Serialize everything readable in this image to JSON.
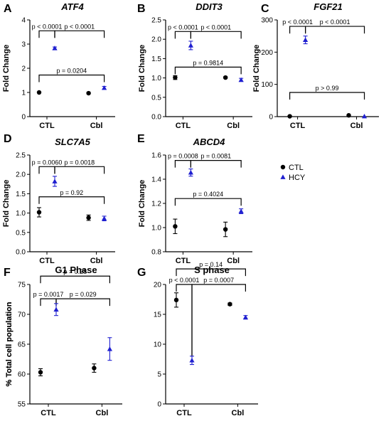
{
  "legend": [
    {
      "label": "CTL",
      "color": "#000000",
      "marker": "circle"
    },
    {
      "label": "HCY",
      "color": "#1f1fd0",
      "marker": "triangle"
    }
  ],
  "chart_data": [
    {
      "letter": "A",
      "title": "ATF4",
      "italic": true,
      "type": "scatter",
      "categories": [
        "CTL",
        "Cbl"
      ],
      "ylabel": "Fold Change",
      "ylim": [
        0,
        4
      ],
      "yticks": [
        0,
        1,
        2,
        3,
        4
      ],
      "series": [
        {
          "name": "CTL",
          "values": [
            1.0,
            0.97
          ],
          "err": [
            0.02,
            0.03
          ]
        },
        {
          "name": "HCY",
          "values": [
            2.83,
            1.19
          ],
          "err": [
            0.05,
            0.06
          ]
        }
      ],
      "comparisons": [
        {
          "a": [
            0,
            0
          ],
          "b": [
            0,
            1
          ],
          "label": "p < 0.0001",
          "y": 3.55,
          "side": "left"
        },
        {
          "a": [
            0,
            1
          ],
          "b": [
            1,
            1
          ],
          "label": "p < 0.0001",
          "y": 3.55,
          "side": "right"
        },
        {
          "a": [
            0,
            0
          ],
          "b": [
            1,
            1
          ],
          "label": "p = 0.0204",
          "y": 1.72
        }
      ]
    },
    {
      "letter": "B",
      "title": "DDIT3",
      "italic": true,
      "type": "scatter",
      "categories": [
        "CTL",
        "Cbl"
      ],
      "ylabel": "Fold Change",
      "ylim": [
        0,
        2.5
      ],
      "yticks": [
        0,
        0.5,
        1,
        1.5,
        2,
        2.5
      ],
      "series": [
        {
          "name": "CTL",
          "values": [
            1.01,
            1.01
          ],
          "err": [
            0.05,
            0.02
          ]
        },
        {
          "name": "HCY",
          "values": [
            1.84,
            0.95
          ],
          "err": [
            0.11,
            0.04
          ]
        }
      ],
      "comparisons": [
        {
          "a": [
            0,
            0
          ],
          "b": [
            0,
            1
          ],
          "label": "p < 0.0001",
          "y": 2.2,
          "side": "left"
        },
        {
          "a": [
            0,
            1
          ],
          "b": [
            1,
            1
          ],
          "label": "p < 0.0001",
          "y": 2.2,
          "side": "right"
        },
        {
          "a": [
            0,
            0
          ],
          "b": [
            1,
            1
          ],
          "label": "p = 0.9814",
          "y": 1.28
        }
      ]
    },
    {
      "letter": "C",
      "title": "FGF21",
      "italic": true,
      "type": "scatter",
      "categories": [
        "CTL",
        "Cbl"
      ],
      "ylabel": "Fold Change",
      "ylim": [
        0,
        300
      ],
      "yticks": [
        0,
        100,
        200,
        300
      ],
      "series": [
        {
          "name": "CTL",
          "values": [
            1,
            4
          ],
          "err": [
            0.5,
            0.5
          ]
        },
        {
          "name": "HCY",
          "values": [
            238,
            1
          ],
          "err": [
            12,
            0.5
          ]
        }
      ],
      "comparisons": [
        {
          "a": [
            0,
            0
          ],
          "b": [
            0,
            1
          ],
          "label": "p < 0.0001",
          "y": 280,
          "side": "left"
        },
        {
          "a": [
            0,
            1
          ],
          "b": [
            1,
            1
          ],
          "label": "p < 0.0001",
          "y": 280,
          "side": "right"
        },
        {
          "a": [
            0,
            0
          ],
          "b": [
            1,
            1
          ],
          "label": "p > 0.99",
          "y": 75
        }
      ]
    },
    {
      "letter": "D",
      "title": "SLC7A5",
      "italic": true,
      "type": "scatter",
      "categories": [
        "CTL",
        "Cbl"
      ],
      "ylabel": "Fold Change",
      "ylim": [
        0,
        2.5
      ],
      "yticks": [
        0,
        0.5,
        1,
        1.5,
        2,
        2.5
      ],
      "series": [
        {
          "name": "CTL",
          "values": [
            1.02,
            0.88
          ],
          "err": [
            0.12,
            0.07
          ]
        },
        {
          "name": "HCY",
          "values": [
            1.82,
            0.86
          ],
          "err": [
            0.13,
            0.06
          ]
        }
      ],
      "comparisons": [
        {
          "a": [
            0,
            0
          ],
          "b": [
            0,
            1
          ],
          "label": "p = 0.0060",
          "y": 2.2,
          "side": "left"
        },
        {
          "a": [
            0,
            1
          ],
          "b": [
            1,
            1
          ],
          "label": "p = 0.0018",
          "y": 2.2,
          "side": "right"
        },
        {
          "a": [
            0,
            0
          ],
          "b": [
            1,
            1
          ],
          "label": "p = 0.92",
          "y": 1.42
        }
      ]
    },
    {
      "letter": "E",
      "title": "ABCD4",
      "italic": true,
      "type": "scatter",
      "categories": [
        "CTL",
        "Cbl"
      ],
      "ylabel": "Fold Change",
      "ylim": [
        0.8,
        1.6
      ],
      "yticks": [
        0.8,
        1.0,
        1.2,
        1.4,
        1.6
      ],
      "series": [
        {
          "name": "CTL",
          "values": [
            1.01,
            0.985
          ],
          "err": [
            0.06,
            0.06
          ]
        },
        {
          "name": "HCY",
          "values": [
            1.455,
            1.135
          ],
          "err": [
            0.03,
            0.02
          ]
        }
      ],
      "comparisons": [
        {
          "a": [
            0,
            0
          ],
          "b": [
            0,
            1
          ],
          "label": "p = 0.0008",
          "y": 1.555,
          "side": "left"
        },
        {
          "a": [
            0,
            1
          ],
          "b": [
            1,
            1
          ],
          "label": "p = 0.0081",
          "y": 1.555,
          "side": "right"
        },
        {
          "a": [
            0,
            0
          ],
          "b": [
            1,
            1
          ],
          "label": "p = 0.4024",
          "y": 1.24
        }
      ]
    },
    {
      "letter": "F",
      "title": "G1 Phase",
      "italic": false,
      "type": "scatter",
      "categories": [
        "CTL",
        "Cbl"
      ],
      "ylabel": "% Total cell population",
      "ylim": [
        55,
        75
      ],
      "yticks": [
        55,
        60,
        65,
        70,
        75
      ],
      "series": [
        {
          "name": "CTL",
          "values": [
            60.3,
            61.0
          ],
          "err": [
            0.6,
            0.7
          ]
        },
        {
          "name": "HCY",
          "values": [
            70.8,
            64.2
          ],
          "err": [
            1.0,
            1.9
          ]
        }
      ],
      "comparisons": [
        {
          "a": [
            0,
            0
          ],
          "b": [
            0,
            1
          ],
          "label": "p = 0.0017",
          "y": 72.6,
          "side": "left"
        },
        {
          "a": [
            0,
            1
          ],
          "b": [
            1,
            1
          ],
          "label": "p = 0.029",
          "y": 72.6,
          "side": "right"
        },
        {
          "a": [
            0,
            0
          ],
          "b": [
            1,
            1
          ],
          "label": "p = 0.28",
          "y": 76.4,
          "clip": false
        }
      ]
    },
    {
      "letter": "G",
      "title": "S phase",
      "italic": false,
      "type": "scatter",
      "categories": [
        "CTL",
        "Cbl"
      ],
      "ylabel": "% Total cell population",
      "ylim": [
        0,
        20
      ],
      "yticks": [
        0,
        5,
        10,
        15,
        20
      ],
      "series": [
        {
          "name": "CTL",
          "values": [
            17.4,
            16.7
          ],
          "err": [
            1.2,
            0.2
          ]
        },
        {
          "name": "HCY",
          "values": [
            7.3,
            14.5
          ],
          "err": [
            0.7,
            0.3
          ]
        }
      ],
      "comparisons": [
        {
          "a": [
            0,
            0
          ],
          "b": [
            0,
            1
          ],
          "label": "p < 0.0001",
          "y": 20.0,
          "side": "left",
          "drop": 7.9
        },
        {
          "a": [
            0,
            1
          ],
          "b": [
            1,
            1
          ],
          "label": "p = 0.0007",
          "y": 20.0,
          "side": "right",
          "drop": 7.9
        },
        {
          "a": [
            0,
            0
          ],
          "b": [
            1,
            1
          ],
          "label": "p = 0.14",
          "y": 22.6,
          "clip": false
        }
      ]
    }
  ]
}
